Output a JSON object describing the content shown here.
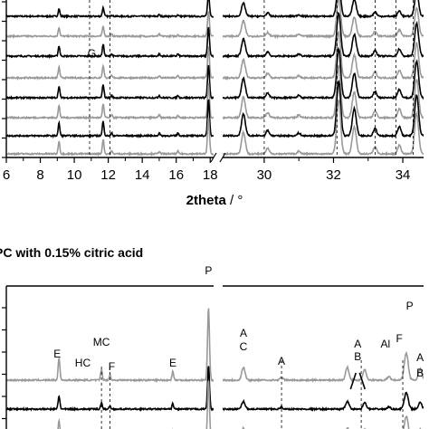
{
  "chart_data": [
    {
      "type": "line",
      "panel": "top",
      "title": "",
      "xlabel": "2theta / °",
      "xlabel_bold_part": "2theta",
      "xlabel_rest": " / °",
      "ylabel": "",
      "segments": [
        {
          "xlim": [
            6,
            18.2
          ],
          "ticks": [
            6,
            8,
            10,
            12,
            14,
            16,
            18
          ]
        },
        {
          "xlim": [
            28.8,
            34.6
          ],
          "ticks": [
            30,
            32,
            34
          ]
        }
      ],
      "reference_lines_x": [
        10.9,
        12.1,
        30.0,
        32.1,
        33.2,
        33.8,
        34.3
      ],
      "stacked_traces": 8,
      "trace_colors": [
        "#000000",
        "#999999",
        "#000000",
        "#999999",
        "#000000",
        "#999999",
        "#000000",
        "#999999"
      ],
      "peaks_left": [
        {
          "x": 9.1,
          "h": 14
        },
        {
          "x": 11.7,
          "h": 4
        },
        {
          "x": 12.2,
          "h": 3
        },
        {
          "x": 15.0,
          "h": 3
        },
        {
          "x": 16.1,
          "h": 3
        },
        {
          "x": 17.9,
          "h": 40
        }
      ],
      "peaks_right": [
        {
          "x": 29.4,
          "h": 24
        },
        {
          "x": 30.1,
          "h": 6
        },
        {
          "x": 31.0,
          "h": 3
        },
        {
          "x": 32.15,
          "h": 60
        },
        {
          "x": 32.6,
          "h": 30
        },
        {
          "x": 33.2,
          "h": 8
        },
        {
          "x": 33.9,
          "h": 10
        },
        {
          "x": 34.4,
          "h": 45
        }
      ],
      "annotations": [
        {
          "text": "G",
          "x": 11.3
        }
      ]
    },
    {
      "type": "line",
      "panel": "bottom",
      "title": "PC with 0.15% citric acid",
      "xlabel": "",
      "ylabel": "",
      "segments": [
        {
          "xlim": [
            6,
            18.2
          ]
        },
        {
          "xlim": [
            28.8,
            34.6
          ]
        }
      ],
      "reference_lines_x": [
        11.6,
        12.1,
        30.5,
        32.8,
        34.0
      ],
      "stacked_traces": 3,
      "trace_colors": [
        "#999999",
        "#000000",
        "#999999"
      ],
      "peaks_left": [
        {
          "x": 9.1,
          "h": 24
        },
        {
          "x": 11.6,
          "h": 12
        },
        {
          "x": 12.1,
          "h": 6
        },
        {
          "x": 15.8,
          "h": 10
        },
        {
          "x": 17.9,
          "h": 80
        }
      ],
      "peaks_right": [
        {
          "x": 29.4,
          "h": 14
        },
        {
          "x": 30.5,
          "h": 3
        },
        {
          "x": 32.4,
          "h": 14
        },
        {
          "x": 32.9,
          "h": 12
        },
        {
          "x": 33.6,
          "h": 4
        },
        {
          "x": 34.1,
          "h": 30
        },
        {
          "x": 34.5,
          "h": 12
        }
      ],
      "annotations": [
        {
          "text": "E",
          "x": 9.0
        },
        {
          "text": "HC",
          "x": 10.5
        },
        {
          "text": "MC",
          "x": 11.6
        },
        {
          "text": "F",
          "x": 12.2
        },
        {
          "text": "E",
          "x": 15.8
        },
        {
          "text": "P",
          "x": 17.9
        },
        {
          "text": "A",
          "x": 29.4
        },
        {
          "text": "C",
          "x": 29.4
        },
        {
          "text": "A",
          "x": 30.5
        },
        {
          "text": "A",
          "x": 32.7
        },
        {
          "text": "B",
          "x": 32.7
        },
        {
          "text": "Al",
          "x": 33.5
        },
        {
          "text": "F",
          "x": 33.9
        },
        {
          "text": "P",
          "x": 34.2
        },
        {
          "text": "A",
          "x": 34.5
        },
        {
          "text": "B",
          "x": 34.5
        }
      ]
    }
  ]
}
